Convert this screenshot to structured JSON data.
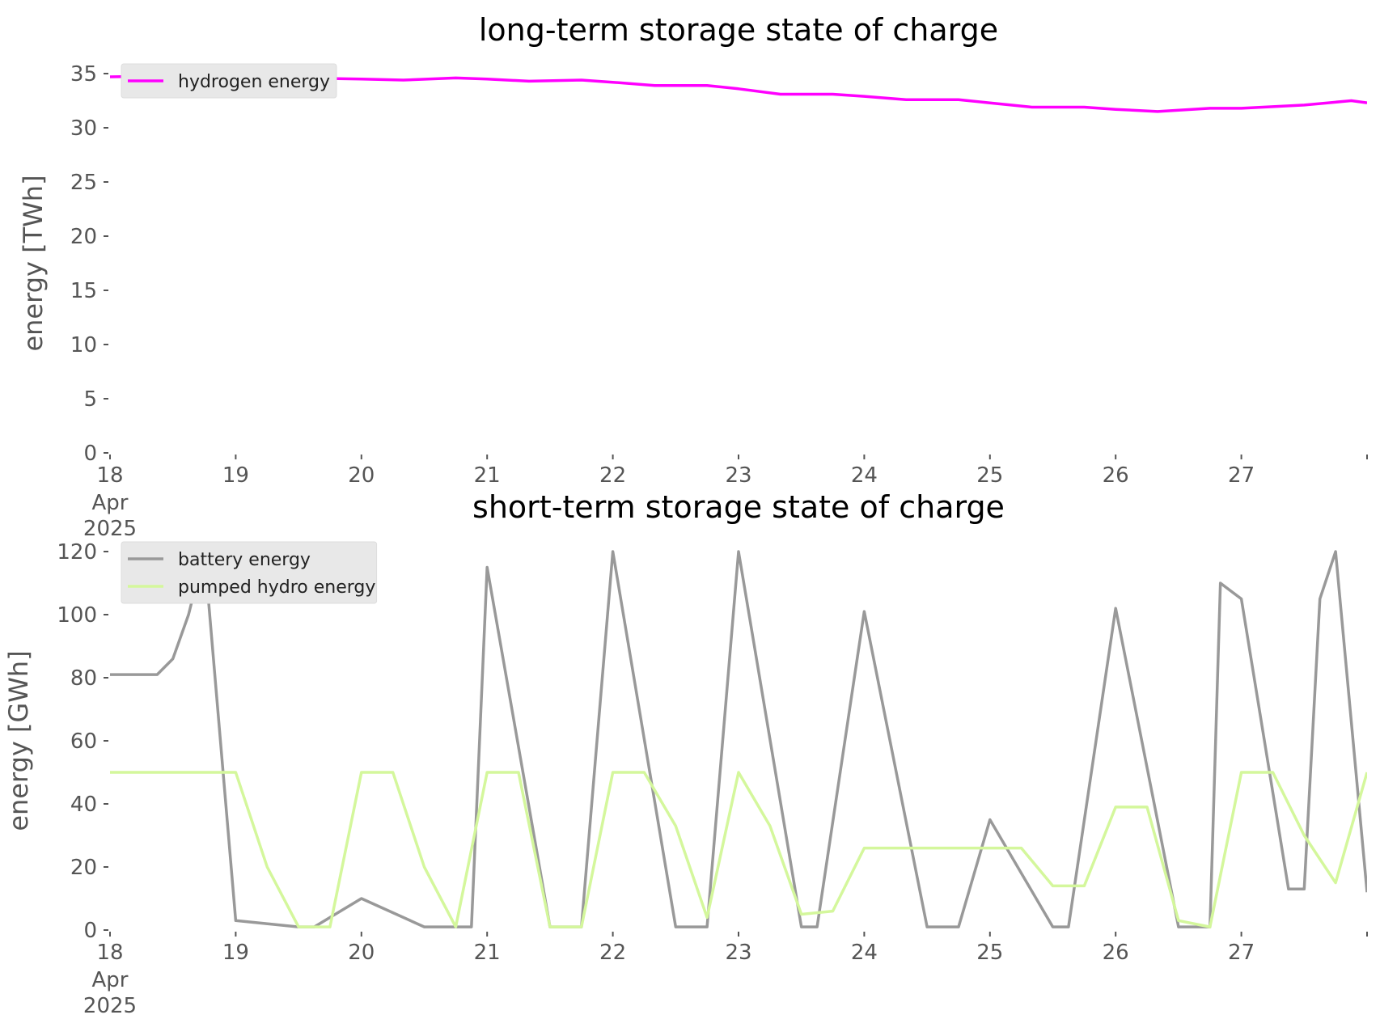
{
  "chart_data": [
    {
      "type": "line",
      "title": "long-term storage state of charge",
      "ylabel": "energy [TWh]",
      "xlabel": "",
      "ylim": [
        0,
        35
      ],
      "yticks": [
        0,
        5,
        10,
        15,
        20,
        25,
        30,
        35
      ],
      "xlim": [
        "2025-04-18",
        "2025-04-28"
      ],
      "xticks": [
        {
          "date": "2025-04-18",
          "label": "18",
          "sub": [
            "Apr",
            "2025"
          ]
        },
        {
          "date": "2025-04-19",
          "label": "19"
        },
        {
          "date": "2025-04-20",
          "label": "20"
        },
        {
          "date": "2025-04-21",
          "label": "21"
        },
        {
          "date": "2025-04-22",
          "label": "22"
        },
        {
          "date": "2025-04-23",
          "label": "23"
        },
        {
          "date": "2025-04-24",
          "label": "24"
        },
        {
          "date": "2025-04-25",
          "label": "25"
        },
        {
          "date": "2025-04-26",
          "label": "26"
        },
        {
          "date": "2025-04-27",
          "label": "27"
        },
        {
          "date": "2025-04-28",
          "label": ""
        }
      ],
      "grid": false,
      "legend_position": "top-left",
      "series": [
        {
          "name": "hydrogen energy",
          "color": "#ff00ff",
          "x": [
            "2025-04-18T00:00",
            "2025-04-18T12:00",
            "2025-04-19T00:00",
            "2025-04-19T12:00",
            "2025-04-20T00:00",
            "2025-04-20T08:00",
            "2025-04-20T18:00",
            "2025-04-21T00:00",
            "2025-04-21T08:00",
            "2025-04-21T18:00",
            "2025-04-22T00:00",
            "2025-04-22T08:00",
            "2025-04-22T18:00",
            "2025-04-23T00:00",
            "2025-04-23T08:00",
            "2025-04-23T18:00",
            "2025-04-24T00:00",
            "2025-04-24T08:00",
            "2025-04-24T18:00",
            "2025-04-25T00:00",
            "2025-04-25T08:00",
            "2025-04-25T18:00",
            "2025-04-26T00:00",
            "2025-04-26T08:00",
            "2025-04-26T18:00",
            "2025-04-27T00:00",
            "2025-04-27T12:00",
            "2025-04-27T21:00",
            "2025-04-28T00:00"
          ],
          "y": [
            34.7,
            34.8,
            34.6,
            34.6,
            34.5,
            34.4,
            34.6,
            34.5,
            34.3,
            34.4,
            34.2,
            33.9,
            33.9,
            33.6,
            33.1,
            33.1,
            32.9,
            32.6,
            32.6,
            32.3,
            31.9,
            31.9,
            31.7,
            31.5,
            31.8,
            31.8,
            32.1,
            32.5,
            32.3
          ]
        }
      ]
    },
    {
      "type": "line",
      "title": "short-term storage state of charge",
      "ylabel": "energy [GWh]",
      "xlabel": "",
      "ylim": [
        0,
        120
      ],
      "yticks": [
        0,
        20,
        40,
        60,
        80,
        100,
        120
      ],
      "xlim": [
        "2025-04-18",
        "2025-04-28"
      ],
      "xticks": [
        {
          "date": "2025-04-18",
          "label": "18",
          "sub": [
            "Apr",
            "2025"
          ]
        },
        {
          "date": "2025-04-19",
          "label": "19"
        },
        {
          "date": "2025-04-20",
          "label": "20"
        },
        {
          "date": "2025-04-21",
          "label": "21"
        },
        {
          "date": "2025-04-22",
          "label": "22"
        },
        {
          "date": "2025-04-23",
          "label": "23"
        },
        {
          "date": "2025-04-24",
          "label": "24"
        },
        {
          "date": "2025-04-25",
          "label": "25"
        },
        {
          "date": "2025-04-26",
          "label": "26"
        },
        {
          "date": "2025-04-27",
          "label": "27"
        },
        {
          "date": "2025-04-28",
          "label": ""
        }
      ],
      "grid": false,
      "legend_position": "top-left",
      "series": [
        {
          "name": "battery energy",
          "color": "#999999",
          "x": [
            "2025-04-18T00:00",
            "2025-04-18T09:00",
            "2025-04-18T12:00",
            "2025-04-18T15:00",
            "2025-04-18T18:00",
            "2025-04-19T00:00",
            "2025-04-19T12:00",
            "2025-04-19T15:00",
            "2025-04-20T00:00",
            "2025-04-20T12:00",
            "2025-04-20T21:00",
            "2025-04-21T00:00",
            "2025-04-21T12:00",
            "2025-04-21T18:00",
            "2025-04-22T00:00",
            "2025-04-22T12:00",
            "2025-04-22T18:00",
            "2025-04-23T00:00",
            "2025-04-23T12:00",
            "2025-04-23T15:00",
            "2025-04-24T00:00",
            "2025-04-24T12:00",
            "2025-04-24T15:00",
            "2025-04-24T18:00",
            "2025-04-25T00:00",
            "2025-04-25T12:00",
            "2025-04-25T15:00",
            "2025-04-26T00:00",
            "2025-04-26T12:00",
            "2025-04-26T15:00",
            "2025-04-26T18:00",
            "2025-04-26T20:00",
            "2025-04-27T00:00",
            "2025-04-27T09:00",
            "2025-04-27T12:00",
            "2025-04-27T15:00",
            "2025-04-27T18:00",
            "2025-04-28T00:00"
          ],
          "y": [
            81,
            81,
            86,
            100,
            120,
            3,
            1,
            1,
            10,
            1,
            1,
            115,
            1,
            1,
            120,
            1,
            1,
            120,
            1,
            1,
            101,
            1,
            1,
            1,
            35,
            1,
            1,
            102,
            1,
            1,
            1,
            110,
            105,
            13,
            13,
            105,
            120,
            12
          ]
        },
        {
          "name": "pumped hydro energy",
          "color": "#d4f79c",
          "x": [
            "2025-04-18T00:00",
            "2025-04-19T00:00",
            "2025-04-19T06:00",
            "2025-04-19T12:00",
            "2025-04-19T18:00",
            "2025-04-20T00:00",
            "2025-04-20T06:00",
            "2025-04-20T12:00",
            "2025-04-20T18:00",
            "2025-04-21T00:00",
            "2025-04-21T06:00",
            "2025-04-21T12:00",
            "2025-04-21T18:00",
            "2025-04-22T00:00",
            "2025-04-22T06:00",
            "2025-04-22T12:00",
            "2025-04-22T18:00",
            "2025-04-23T00:00",
            "2025-04-23T06:00",
            "2025-04-23T12:00",
            "2025-04-23T18:00",
            "2025-04-24T00:00",
            "2025-04-24T12:00",
            "2025-04-25T00:00",
            "2025-04-25T06:00",
            "2025-04-25T12:00",
            "2025-04-25T18:00",
            "2025-04-26T00:00",
            "2025-04-26T06:00",
            "2025-04-26T12:00",
            "2025-04-26T18:00",
            "2025-04-27T00:00",
            "2025-04-27T06:00",
            "2025-04-27T12:00",
            "2025-04-27T18:00",
            "2025-04-28T00:00"
          ],
          "y": [
            50,
            50,
            20,
            1,
            1,
            50,
            50,
            20,
            1,
            50,
            50,
            1,
            1,
            50,
            50,
            33,
            4,
            50,
            33,
            5,
            6,
            26,
            26,
            26,
            26,
            14,
            14,
            39,
            39,
            3,
            1,
            50,
            50,
            30,
            15,
            50
          ]
        }
      ]
    }
  ]
}
